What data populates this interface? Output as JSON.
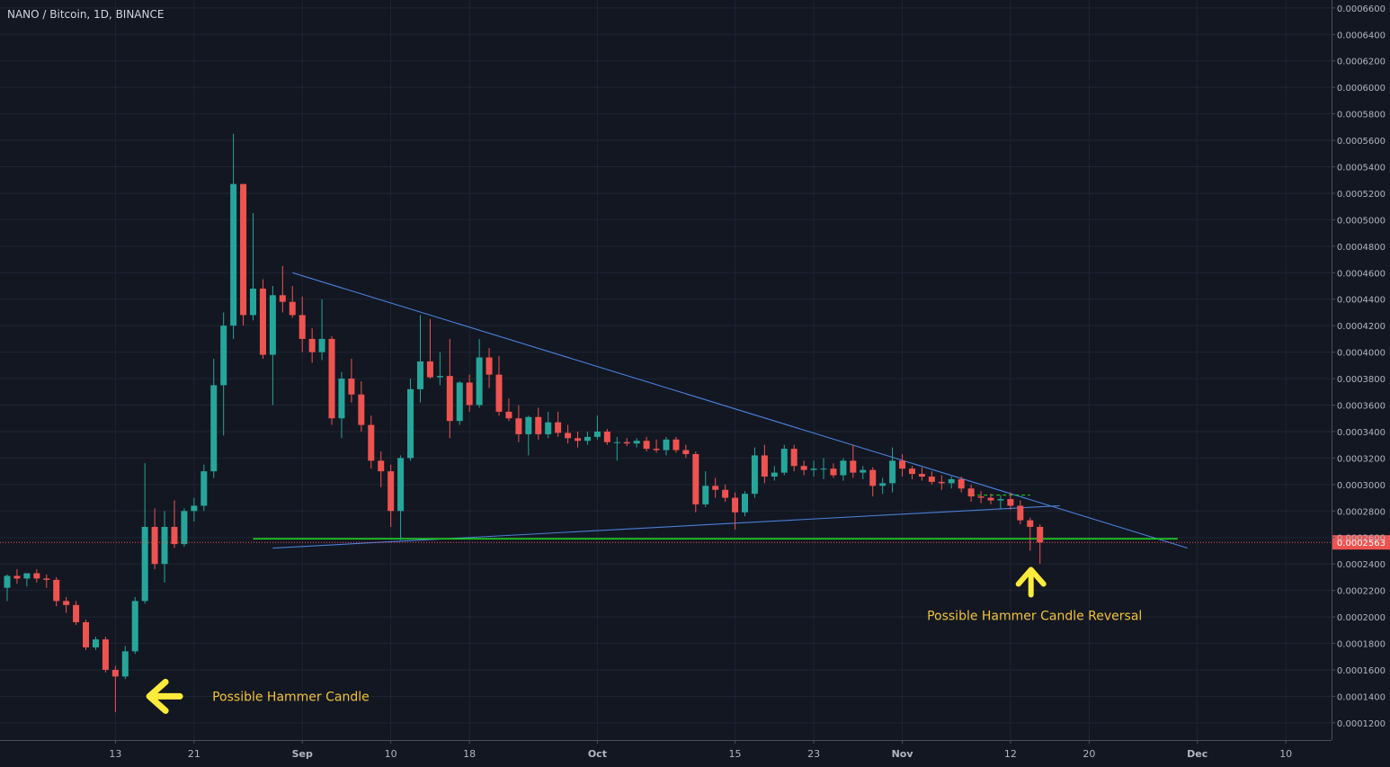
{
  "chart_data": {
    "type": "candlestick",
    "title": "NANO / Bitcoin, 1D, BINANCE",
    "colors": {
      "background": "#131722",
      "grid": "#1f2433",
      "up": "#26a69a",
      "down": "#ef5350",
      "text": "#b2b5be",
      "trendline": "#4a7fd9",
      "support": "#1fd11f",
      "annotation": "#ffeb3b",
      "last_price": "#ef5350"
    },
    "x_axis": {
      "type": "date",
      "start": "2018-08-02",
      "tick_labels": [
        "13",
        "21",
        "Sep",
        "10",
        "18",
        "Oct",
        "15",
        "23",
        "Nov",
        "12",
        "20",
        "Dec",
        "10"
      ],
      "tick_dates": [
        "2018-08-13",
        "2018-08-21",
        "2018-09-01",
        "2018-09-10",
        "2018-09-18",
        "2018-10-01",
        "2018-10-15",
        "2018-10-23",
        "2018-11-01",
        "2018-11-12",
        "2018-11-20",
        "2018-12-01",
        "2018-12-10"
      ]
    },
    "y_axis": {
      "ylim": [
        0.000107,
        0.000666
      ],
      "tick_labels": [
        "0.0001200",
        "0.0001400",
        "0.0001600",
        "0.0001800",
        "0.0002000",
        "0.0002200",
        "0.0002400",
        "0.0002600",
        "0.0002800",
        "0.0003000",
        "0.0003200",
        "0.0003400",
        "0.0003600",
        "0.0003800",
        "0.0004000",
        "0.0004200",
        "0.0004400",
        "0.0004600",
        "0.0004800",
        "0.0005000",
        "0.0005200",
        "0.0005400",
        "0.0005600",
        "0.0005800",
        "0.0006000",
        "0.0006200",
        "0.0006400",
        "0.0006600"
      ]
    },
    "last_price": {
      "value": 0.0002563,
      "label": "0.0002563"
    },
    "candles": [
      {
        "date": "2018-08-02",
        "open": 0.000222,
        "high": 0.000232,
        "low": 0.000212,
        "close": 0.000231
      },
      {
        "date": "2018-08-03",
        "open": 0.000231,
        "high": 0.000236,
        "low": 0.000225,
        "close": 0.000229
      },
      {
        "date": "2018-08-04",
        "open": 0.000229,
        "high": 0.000233,
        "low": 0.000223,
        "close": 0.000233
      },
      {
        "date": "2018-08-05",
        "open": 0.000233,
        "high": 0.000236,
        "low": 0.000226,
        "close": 0.000229
      },
      {
        "date": "2018-08-06",
        "open": 0.000229,
        "high": 0.000232,
        "low": 0.000222,
        "close": 0.000228
      },
      {
        "date": "2018-08-07",
        "open": 0.000228,
        "high": 0.00023,
        "low": 0.000208,
        "close": 0.000212
      },
      {
        "date": "2018-08-08",
        "open": 0.000212,
        "high": 0.000215,
        "low": 0.000203,
        "close": 0.000209
      },
      {
        "date": "2018-08-09",
        "open": 0.000209,
        "high": 0.000212,
        "low": 0.000194,
        "close": 0.000196
      },
      {
        "date": "2018-08-10",
        "open": 0.000196,
        "high": 0.000198,
        "low": 0.000175,
        "close": 0.000177
      },
      {
        "date": "2018-08-11",
        "open": 0.000177,
        "high": 0.000185,
        "low": 0.000175,
        "close": 0.000183
      },
      {
        "date": "2018-08-12",
        "open": 0.000183,
        "high": 0.000185,
        "low": 0.000158,
        "close": 0.00016
      },
      {
        "date": "2018-08-13",
        "open": 0.00016,
        "high": 0.000163,
        "low": 0.000128,
        "close": 0.000155
      },
      {
        "date": "2018-08-14",
        "open": 0.000155,
        "high": 0.000178,
        "low": 0.000153,
        "close": 0.000174
      },
      {
        "date": "2018-08-15",
        "open": 0.000174,
        "high": 0.000215,
        "low": 0.000172,
        "close": 0.000212
      },
      {
        "date": "2018-08-16",
        "open": 0.000212,
        "high": 0.000316,
        "low": 0.00021,
        "close": 0.000268
      },
      {
        "date": "2018-08-17",
        "open": 0.000268,
        "high": 0.000282,
        "low": 0.000236,
        "close": 0.00024
      },
      {
        "date": "2018-08-18",
        "open": 0.00024,
        "high": 0.00028,
        "low": 0.000226,
        "close": 0.000268
      },
      {
        "date": "2018-08-19",
        "open": 0.000268,
        "high": 0.000288,
        "low": 0.000252,
        "close": 0.000255
      },
      {
        "date": "2018-08-20",
        "open": 0.000255,
        "high": 0.000282,
        "low": 0.000253,
        "close": 0.00028
      },
      {
        "date": "2018-08-21",
        "open": 0.00028,
        "high": 0.00029,
        "low": 0.000272,
        "close": 0.000284
      },
      {
        "date": "2018-08-22",
        "open": 0.000284,
        "high": 0.000315,
        "low": 0.00028,
        "close": 0.00031
      },
      {
        "date": "2018-08-23",
        "open": 0.00031,
        "high": 0.000395,
        "low": 0.000305,
        "close": 0.000375
      },
      {
        "date": "2018-08-24",
        "open": 0.000375,
        "high": 0.00043,
        "low": 0.000337,
        "close": 0.00042
      },
      {
        "date": "2018-08-25",
        "open": 0.00042,
        "high": 0.000565,
        "low": 0.00041,
        "close": 0.000527
      },
      {
        "date": "2018-08-26",
        "open": 0.000527,
        "high": 0.000527,
        "low": 0.00042,
        "close": 0.000428
      },
      {
        "date": "2018-08-27",
        "open": 0.000428,
        "high": 0.000505,
        "low": 0.000424,
        "close": 0.000448
      },
      {
        "date": "2018-08-28",
        "open": 0.000448,
        "high": 0.000455,
        "low": 0.000395,
        "close": 0.000398
      },
      {
        "date": "2018-08-29",
        "open": 0.000398,
        "high": 0.00045,
        "low": 0.00036,
        "close": 0.000443
      },
      {
        "date": "2018-08-30",
        "open": 0.000443,
        "high": 0.000465,
        "low": 0.00043,
        "close": 0.000438
      },
      {
        "date": "2018-08-31",
        "open": 0.000438,
        "high": 0.00045,
        "low": 0.000426,
        "close": 0.000428
      },
      {
        "date": "2018-09-01",
        "open": 0.000428,
        "high": 0.000442,
        "low": 0.0004,
        "close": 0.00041
      },
      {
        "date": "2018-09-02",
        "open": 0.00041,
        "high": 0.000418,
        "low": 0.000392,
        "close": 0.0004
      },
      {
        "date": "2018-09-03",
        "open": 0.0004,
        "high": 0.00044,
        "low": 0.000394,
        "close": 0.00041
      },
      {
        "date": "2018-09-04",
        "open": 0.00041,
        "high": 0.000412,
        "low": 0.000345,
        "close": 0.00035
      },
      {
        "date": "2018-09-05",
        "open": 0.00035,
        "high": 0.000385,
        "low": 0.000335,
        "close": 0.00038
      },
      {
        "date": "2018-09-06",
        "open": 0.00038,
        "high": 0.000395,
        "low": 0.000362,
        "close": 0.000368
      },
      {
        "date": "2018-09-07",
        "open": 0.000368,
        "high": 0.000378,
        "low": 0.00034,
        "close": 0.000345
      },
      {
        "date": "2018-09-08",
        "open": 0.000345,
        "high": 0.000352,
        "low": 0.000312,
        "close": 0.000318
      },
      {
        "date": "2018-09-09",
        "open": 0.000318,
        "high": 0.000325,
        "low": 0.000298,
        "close": 0.00031
      },
      {
        "date": "2018-09-10",
        "open": 0.00031,
        "high": 0.000315,
        "low": 0.000268,
        "close": 0.00028
      },
      {
        "date": "2018-09-11",
        "open": 0.00028,
        "high": 0.000322,
        "low": 0.000258,
        "close": 0.00032
      },
      {
        "date": "2018-09-12",
        "open": 0.00032,
        "high": 0.00038,
        "low": 0.000318,
        "close": 0.000372
      },
      {
        "date": "2018-09-13",
        "open": 0.000372,
        "high": 0.000428,
        "low": 0.000362,
        "close": 0.000393
      },
      {
        "date": "2018-09-14",
        "open": 0.000393,
        "high": 0.000425,
        "low": 0.00038,
        "close": 0.000381
      },
      {
        "date": "2018-09-15",
        "open": 0.000381,
        "high": 0.0004,
        "low": 0.000375,
        "close": 0.000382
      },
      {
        "date": "2018-09-16",
        "open": 0.000382,
        "high": 0.00041,
        "low": 0.000335,
        "close": 0.000348
      },
      {
        "date": "2018-09-17",
        "open": 0.000348,
        "high": 0.000378,
        "low": 0.000345,
        "close": 0.000377
      },
      {
        "date": "2018-09-18",
        "open": 0.000377,
        "high": 0.000383,
        "low": 0.000355,
        "close": 0.00036
      },
      {
        "date": "2018-09-19",
        "open": 0.00036,
        "high": 0.00041,
        "low": 0.000358,
        "close": 0.000396
      },
      {
        "date": "2018-09-20",
        "open": 0.000396,
        "high": 0.000403,
        "low": 0.000373,
        "close": 0.000383
      },
      {
        "date": "2018-09-21",
        "open": 0.000383,
        "high": 0.000397,
        "low": 0.000352,
        "close": 0.000355
      },
      {
        "date": "2018-09-22",
        "open": 0.000355,
        "high": 0.000365,
        "low": 0.000348,
        "close": 0.00035
      },
      {
        "date": "2018-09-23",
        "open": 0.00035,
        "high": 0.00036,
        "low": 0.000332,
        "close": 0.000338
      },
      {
        "date": "2018-09-24",
        "open": 0.000338,
        "high": 0.000352,
        "low": 0.000322,
        "close": 0.000351
      },
      {
        "date": "2018-09-25",
        "open": 0.000351,
        "high": 0.000358,
        "low": 0.000334,
        "close": 0.000338
      },
      {
        "date": "2018-09-26",
        "open": 0.000338,
        "high": 0.000355,
        "low": 0.000335,
        "close": 0.000347
      },
      {
        "date": "2018-09-27",
        "open": 0.000347,
        "high": 0.000355,
        "low": 0.000336,
        "close": 0.000339
      },
      {
        "date": "2018-09-28",
        "open": 0.000339,
        "high": 0.000345,
        "low": 0.000331,
        "close": 0.000335
      },
      {
        "date": "2018-09-29",
        "open": 0.000335,
        "high": 0.00034,
        "low": 0.000328,
        "close": 0.000333
      },
      {
        "date": "2018-09-30",
        "open": 0.000333,
        "high": 0.00034,
        "low": 0.00033,
        "close": 0.000336
      },
      {
        "date": "2018-10-01",
        "open": 0.000336,
        "high": 0.000352,
        "low": 0.000334,
        "close": 0.00034
      },
      {
        "date": "2018-10-02",
        "open": 0.00034,
        "high": 0.000342,
        "low": 0.00033,
        "close": 0.000332
      },
      {
        "date": "2018-10-03",
        "open": 0.000332,
        "high": 0.000336,
        "low": 0.000318,
        "close": 0.000332
      },
      {
        "date": "2018-10-04",
        "open": 0.000332,
        "high": 0.000335,
        "low": 0.000329,
        "close": 0.000331
      },
      {
        "date": "2018-10-05",
        "open": 0.000331,
        "high": 0.000335,
        "low": 0.000328,
        "close": 0.000333
      },
      {
        "date": "2018-10-06",
        "open": 0.000333,
        "high": 0.000336,
        "low": 0.000325,
        "close": 0.000327
      },
      {
        "date": "2018-10-07",
        "open": 0.000327,
        "high": 0.000334,
        "low": 0.000324,
        "close": 0.000326
      },
      {
        "date": "2018-10-08",
        "open": 0.000326,
        "high": 0.000336,
        "low": 0.000322,
        "close": 0.000334
      },
      {
        "date": "2018-10-09",
        "open": 0.000334,
        "high": 0.000336,
        "low": 0.000324,
        "close": 0.000326
      },
      {
        "date": "2018-10-10",
        "open": 0.000326,
        "high": 0.00033,
        "low": 0.00032,
        "close": 0.000323
      },
      {
        "date": "2018-10-11",
        "open": 0.000323,
        "high": 0.000325,
        "low": 0.000279,
        "close": 0.000285
      },
      {
        "date": "2018-10-12",
        "open": 0.000285,
        "high": 0.00031,
        "low": 0.000283,
        "close": 0.000299
      },
      {
        "date": "2018-10-13",
        "open": 0.000299,
        "high": 0.000305,
        "low": 0.00029,
        "close": 0.000296
      },
      {
        "date": "2018-10-14",
        "open": 0.000296,
        "high": 0.0003,
        "low": 0.000287,
        "close": 0.00029
      },
      {
        "date": "2018-10-15",
        "open": 0.00029,
        "high": 0.000294,
        "low": 0.000266,
        "close": 0.000279
      },
      {
        "date": "2018-10-16",
        "open": 0.000279,
        "high": 0.000295,
        "low": 0.000276,
        "close": 0.000293
      },
      {
        "date": "2018-10-17",
        "open": 0.000293,
        "high": 0.000328,
        "low": 0.00029,
        "close": 0.000322
      },
      {
        "date": "2018-10-18",
        "open": 0.000322,
        "high": 0.00033,
        "low": 0.000301,
        "close": 0.000306
      },
      {
        "date": "2018-10-19",
        "open": 0.000306,
        "high": 0.000314,
        "low": 0.000303,
        "close": 0.000309
      },
      {
        "date": "2018-10-20",
        "open": 0.000309,
        "high": 0.00033,
        "low": 0.000307,
        "close": 0.000327
      },
      {
        "date": "2018-10-21",
        "open": 0.000327,
        "high": 0.00033,
        "low": 0.00031,
        "close": 0.000314
      },
      {
        "date": "2018-10-22",
        "open": 0.000314,
        "high": 0.000318,
        "low": 0.000307,
        "close": 0.000311
      },
      {
        "date": "2018-10-23",
        "open": 0.000311,
        "high": 0.000318,
        "low": 0.000306,
        "close": 0.000312
      },
      {
        "date": "2018-10-24",
        "open": 0.000312,
        "high": 0.00032,
        "low": 0.000304,
        "close": 0.000312
      },
      {
        "date": "2018-10-25",
        "open": 0.000312,
        "high": 0.000316,
        "low": 0.000305,
        "close": 0.000307
      },
      {
        "date": "2018-10-26",
        "open": 0.000307,
        "high": 0.00032,
        "low": 0.000303,
        "close": 0.000318
      },
      {
        "date": "2018-10-27",
        "open": 0.000318,
        "high": 0.00033,
        "low": 0.000305,
        "close": 0.000309
      },
      {
        "date": "2018-10-28",
        "open": 0.000309,
        "high": 0.000314,
        "low": 0.000304,
        "close": 0.000311
      },
      {
        "date": "2018-10-29",
        "open": 0.000311,
        "high": 0.000313,
        "low": 0.000291,
        "close": 0.000299
      },
      {
        "date": "2018-10-30",
        "open": 0.000299,
        "high": 0.000305,
        "low": 0.000293,
        "close": 0.000301
      },
      {
        "date": "2018-10-31",
        "open": 0.000301,
        "high": 0.000328,
        "low": 0.000294,
        "close": 0.000318
      },
      {
        "date": "2018-11-01",
        "open": 0.000318,
        "high": 0.000323,
        "low": 0.000306,
        "close": 0.000312
      },
      {
        "date": "2018-11-02",
        "open": 0.000312,
        "high": 0.000314,
        "low": 0.000304,
        "close": 0.000308
      },
      {
        "date": "2018-11-03",
        "open": 0.000308,
        "high": 0.000313,
        "low": 0.000303,
        "close": 0.000306
      },
      {
        "date": "2018-11-04",
        "open": 0.000306,
        "high": 0.00031,
        "low": 0.0003,
        "close": 0.000302
      },
      {
        "date": "2018-11-05",
        "open": 0.000302,
        "high": 0.000307,
        "low": 0.000296,
        "close": 0.000301
      },
      {
        "date": "2018-11-06",
        "open": 0.000301,
        "high": 0.000306,
        "low": 0.000297,
        "close": 0.000304
      },
      {
        "date": "2018-11-07",
        "open": 0.000304,
        "high": 0.000306,
        "low": 0.000294,
        "close": 0.000297
      },
      {
        "date": "2018-11-08",
        "open": 0.000297,
        "high": 0.0003,
        "low": 0.000287,
        "close": 0.000291
      },
      {
        "date": "2018-11-09",
        "open": 0.000291,
        "high": 0.000295,
        "low": 0.000286,
        "close": 0.00029
      },
      {
        "date": "2018-11-10",
        "open": 0.00029,
        "high": 0.000293,
        "low": 0.000285,
        "close": 0.000288
      },
      {
        "date": "2018-11-11",
        "open": 0.000288,
        "high": 0.000292,
        "low": 0.000282,
        "close": 0.000289
      },
      {
        "date": "2018-11-12",
        "open": 0.000289,
        "high": 0.000294,
        "low": 0.000281,
        "close": 0.000284
      },
      {
        "date": "2018-11-13",
        "open": 0.000284,
        "high": 0.000288,
        "low": 0.00027,
        "close": 0.000273
      },
      {
        "date": "2018-11-14",
        "open": 0.000273,
        "high": 0.000275,
        "low": 0.00025,
        "close": 0.000268
      },
      {
        "date": "2018-11-15",
        "open": 0.000268,
        "high": 0.00027,
        "low": 0.00024,
        "close": 0.0002563
      }
    ],
    "trendlines": [
      {
        "name": "descending-resistance",
        "color": "#4a7fd9",
        "points": [
          {
            "date": "2018-08-31",
            "value": 0.00046
          },
          {
            "date": "2018-11-30",
            "value": 0.000252
          }
        ]
      },
      {
        "name": "rising-support",
        "color": "#4a7fd9",
        "points": [
          {
            "date": "2018-08-29",
            "value": 0.000252
          },
          {
            "date": "2018-11-17",
            "value": 0.000284
          }
        ]
      },
      {
        "name": "horizontal-support",
        "color": "#1fd11f",
        "points": [
          {
            "date": "2018-08-27",
            "value": 0.000259
          },
          {
            "date": "2018-11-29",
            "value": 0.000259
          }
        ]
      },
      {
        "name": "dashed-green",
        "color": "#1fd11f",
        "dashed": true,
        "points": [
          {
            "date": "2018-11-08",
            "value": 0.000292
          },
          {
            "date": "2018-11-14",
            "value": 0.000292
          }
        ]
      }
    ],
    "annotations": [
      {
        "text": "Possible Hammer Candle",
        "direction": "left",
        "date": "2018-08-17",
        "value": 0.00014
      },
      {
        "text": "Possible Hammer Candle Reversal",
        "direction": "up",
        "date": "2018-11-15",
        "value": 0.000233
      }
    ]
  }
}
